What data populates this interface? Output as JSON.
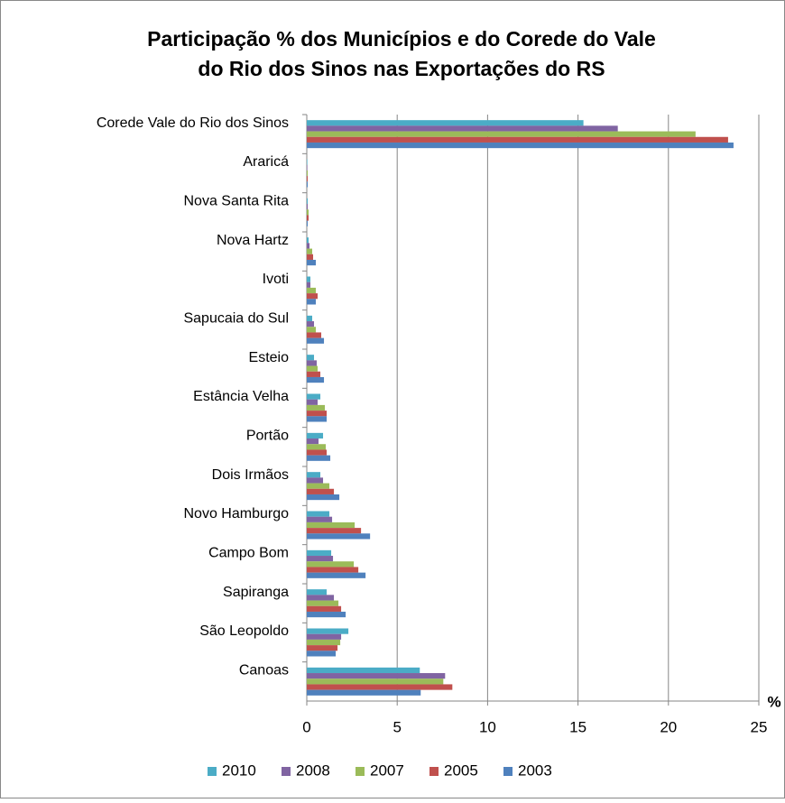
{
  "chart_data": {
    "type": "barh",
    "title": [
      "Participação % dos Municípios e do Corede do Vale",
      "do Rio dos Sinos nas Exportações do RS"
    ],
    "x_label": "%",
    "categories": [
      "Corede Vale do Rio dos Sinos",
      "Araricá",
      "Nova Santa Rita",
      "Nova Hartz",
      "Ivoti",
      "Sapucaia do Sul",
      "Esteio",
      "Estância Velha",
      "Portão",
      "Dois Irmãos",
      "Novo Hamburgo",
      "Campo Bom",
      "Sapiranga",
      "São Leopoldo",
      "Canoas"
    ],
    "series": [
      {
        "name": "2010",
        "color": "#4bacc6",
        "values": [
          15.3,
          0.03,
          0.05,
          0.1,
          0.2,
          0.3,
          0.4,
          0.75,
          0.9,
          0.75,
          1.25,
          1.35,
          1.1,
          2.3,
          6.25
        ]
      },
      {
        "name": "2008",
        "color": "#8064a2",
        "values": [
          17.2,
          0.03,
          0.05,
          0.15,
          0.2,
          0.4,
          0.55,
          0.6,
          0.65,
          0.9,
          1.4,
          1.45,
          1.5,
          1.9,
          7.65
        ]
      },
      {
        "name": "2007",
        "color": "#9bbb59",
        "values": [
          21.5,
          0.05,
          0.1,
          0.3,
          0.5,
          0.5,
          0.6,
          1.0,
          1.05,
          1.25,
          2.65,
          2.6,
          1.75,
          1.85,
          7.55
        ]
      },
      {
        "name": "2005",
        "color": "#c0504d",
        "values": [
          23.3,
          0.05,
          0.1,
          0.35,
          0.6,
          0.8,
          0.75,
          1.1,
          1.1,
          1.5,
          3.0,
          2.85,
          1.9,
          1.7,
          8.05
        ]
      },
      {
        "name": "2003",
        "color": "#4f81bd",
        "values": [
          23.6,
          0.05,
          0.05,
          0.5,
          0.5,
          0.95,
          0.95,
          1.1,
          1.3,
          1.8,
          3.5,
          3.25,
          2.15,
          1.6,
          6.3
        ]
      }
    ],
    "xlim": [
      0,
      25
    ],
    "xticks": [
      0,
      5,
      10,
      15,
      20,
      25
    ],
    "grid": true,
    "legend": "bottom"
  }
}
